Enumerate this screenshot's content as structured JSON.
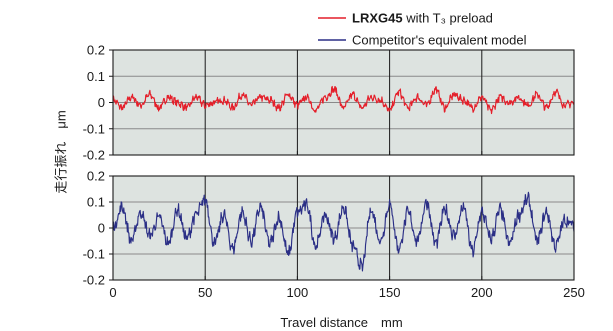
{
  "chart_data": {
    "type": "line",
    "ylabel": "走行振れ　μm",
    "xlabel": "Travel distance　mm",
    "xlim": [
      0,
      250
    ],
    "x_ticks": [
      "0",
      "50",
      "100",
      "150",
      "200",
      "250"
    ],
    "grid": true,
    "legend_position": "top-right",
    "legend": [
      {
        "name_bold": "LRXG45",
        "name_rest": " with T₃ preload",
        "color": "#e41f2a"
      },
      {
        "name_bold": "",
        "name_rest": "Competitor's equivalent model",
        "color": "#2b2f86"
      }
    ],
    "panels": [
      {
        "series": "LRXG45 with T₃ preload",
        "color": "#e41f2a",
        "ylim": [
          -0.2,
          0.2
        ],
        "y_ticks": [
          "0.2",
          "0.1",
          "0",
          "-0.1",
          "-0.2"
        ],
        "x": [
          0,
          5,
          10,
          15,
          20,
          25,
          30,
          35,
          40,
          45,
          50,
          55,
          60,
          65,
          70,
          75,
          80,
          85,
          90,
          95,
          100,
          105,
          110,
          115,
          120,
          125,
          130,
          135,
          140,
          145,
          150,
          155,
          160,
          165,
          170,
          175,
          180,
          185,
          190,
          195,
          200,
          205,
          210,
          215,
          220,
          225,
          230,
          235,
          240,
          245,
          250
        ],
        "y": [
          0.01,
          -0.02,
          0.02,
          -0.01,
          0.03,
          -0.02,
          0.02,
          0.0,
          -0.02,
          0.02,
          -0.01,
          0.0,
          0.01,
          -0.02,
          0.03,
          -0.01,
          0.02,
          0.01,
          -0.02,
          0.03,
          -0.01,
          0.02,
          -0.03,
          0.02,
          0.05,
          -0.02,
          0.03,
          -0.02,
          0.02,
          0.01,
          -0.03,
          0.04,
          -0.02,
          0.02,
          -0.01,
          0.05,
          -0.02,
          0.03,
          0.01,
          -0.02,
          0.02,
          -0.03,
          0.02,
          0.0,
          0.02,
          -0.01,
          0.03,
          -0.02,
          0.04,
          -0.01,
          0.0
        ]
      },
      {
        "series": "Competitor's equivalent model",
        "color": "#2b2f86",
        "ylim": [
          -0.2,
          0.2
        ],
        "y_ticks": [
          "0.2",
          "0.1",
          "0",
          "-0.1",
          "-0.2"
        ],
        "x": [
          0,
          5,
          10,
          15,
          20,
          25,
          30,
          35,
          40,
          45,
          50,
          55,
          60,
          65,
          70,
          75,
          80,
          85,
          90,
          95,
          100,
          105,
          110,
          115,
          120,
          125,
          130,
          135,
          140,
          145,
          150,
          155,
          160,
          165,
          170,
          175,
          180,
          185,
          190,
          195,
          200,
          205,
          210,
          215,
          220,
          225,
          230,
          235,
          240,
          245,
          250
        ],
        "y": [
          0.0,
          0.08,
          -0.05,
          0.06,
          -0.03,
          0.04,
          -0.06,
          0.07,
          -0.04,
          0.05,
          0.11,
          -0.06,
          0.05,
          -0.08,
          0.06,
          -0.05,
          0.08,
          -0.06,
          0.04,
          -0.1,
          0.06,
          0.09,
          -0.07,
          0.05,
          -0.04,
          0.08,
          -0.07,
          -0.15,
          0.07,
          -0.05,
          0.09,
          -0.08,
          0.06,
          -0.05,
          0.1,
          -0.06,
          0.07,
          -0.03,
          0.08,
          -0.09,
          0.06,
          -0.04,
          0.07,
          -0.06,
          0.05,
          0.11,
          -0.05,
          0.06,
          -0.07,
          0.03,
          0.01
        ]
      }
    ]
  }
}
